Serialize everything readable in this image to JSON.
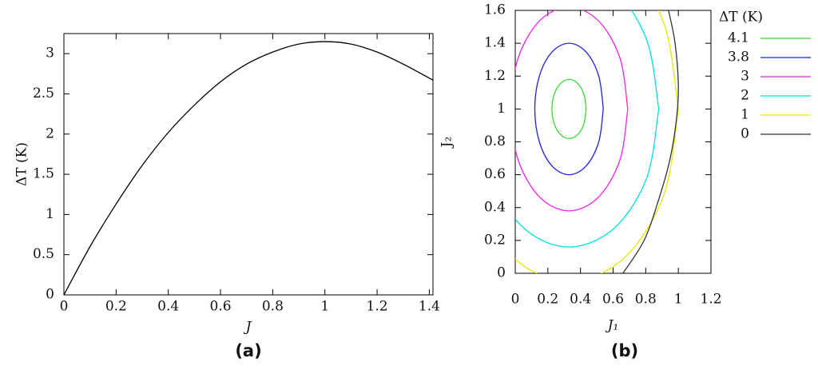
{
  "chart_data": [
    {
      "type": "line",
      "caption": "(a)",
      "xlabel": "J",
      "ylabel": "ΔT (K)",
      "xlim": [
        0,
        1.414
      ],
      "ylim": [
        0,
        3.25
      ],
      "xticks": [
        0,
        0.2,
        0.4,
        0.6,
        0.8,
        1,
        1.2,
        1.4
      ],
      "yticks": [
        0,
        0.5,
        1,
        1.5,
        2,
        2.5,
        3
      ],
      "color": "#000000",
      "x": [
        0,
        0.1,
        0.2,
        0.3,
        0.4,
        0.5,
        0.6,
        0.7,
        0.8,
        0.9,
        1,
        1.1,
        1.2,
        1.3,
        1.414
      ],
      "values": [
        0,
        0.6,
        1.13,
        1.61,
        2.02,
        2.36,
        2.65,
        2.87,
        3.02,
        3.12,
        3.15,
        3.12,
        3.02,
        2.87,
        2.67
      ]
    },
    {
      "type": "contour",
      "caption": "(b)",
      "xlabel": "J₁",
      "ylabel": "J₂",
      "legend_title": "ΔT (K)",
      "xlim": [
        0,
        1.2
      ],
      "ylim": [
        0,
        1.6
      ],
      "xticks": [
        0,
        0.2,
        0.4,
        0.6,
        0.8,
        1,
        1.2
      ],
      "yticks": [
        0,
        0.2,
        0.4,
        0.6,
        0.8,
        1,
        1.2,
        1.4,
        1.6
      ],
      "series": [
        {
          "name": "4.1",
          "color": "#33dd33",
          "x": [
            0.435,
            0.421,
            0.383,
            0.33,
            0.278,
            0.239,
            0.225,
            0.239,
            0.278,
            0.33,
            0.383,
            0.421,
            0.435
          ],
          "values": [
            1,
            1.09,
            1.156,
            1.18,
            1.156,
            1.09,
            1,
            0.91,
            0.844,
            0.82,
            0.844,
            0.91,
            1
          ]
        },
        {
          "name": "3.8",
          "color": "#2222dd",
          "x": [
            0.54,
            0.512,
            0.435,
            0.33,
            0.225,
            0.148,
            0.12,
            0.148,
            0.225,
            0.33,
            0.435,
            0.512,
            0.54
          ],
          "values": [
            1,
            1.2,
            1.346,
            1.4,
            1.346,
            1.2,
            1,
            0.8,
            0.654,
            0.6,
            0.654,
            0.8,
            1
          ]
        },
        {
          "name": "3",
          "color": "#ee22ee",
          "x": [
            0.69,
            0.642,
            0.51,
            0.33,
            0.15,
            0.018,
            -0.03,
            0.018,
            0.15,
            0.33,
            0.51,
            0.642,
            0.69
          ],
          "values": [
            1,
            1.31,
            1.537,
            1.62,
            1.537,
            1.31,
            1,
            0.69,
            0.463,
            0.38,
            0.463,
            0.69,
            1
          ]
        },
        {
          "name": "2",
          "color": "#00e0e0",
          "x": [
            0.88,
            0.806,
            0.605,
            0.33,
            0.055,
            -0.146,
            -0.22,
            -0.146,
            0.055,
            0.33,
            0.605,
            0.806,
            0.88
          ],
          "values": [
            1,
            1.42,
            1.727,
            1.84,
            1.727,
            1.42,
            1,
            0.58,
            0.273,
            0.16,
            0.273,
            0.58,
            1
          ]
        },
        {
          "name": "1",
          "color": "#e8e800",
          "x": [
            1.0,
            0.91,
            0.665,
            0.33,
            -0.005,
            -0.25,
            -0.34,
            -0.25,
            -0.005,
            0.33,
            0.665,
            0.91,
            1.0
          ],
          "values": [
            1,
            1.525,
            1.909,
            2.05,
            1.909,
            1.525,
            1,
            0.475,
            0.091,
            -0.05,
            0.091,
            0.475,
            1
          ]
        },
        {
          "name": "0",
          "color": "#333333",
          "x": [
            0.66,
            0.79,
            0.88,
            0.95,
            0.99,
            1.0,
            0.98,
            0.94
          ],
          "values": [
            0,
            0.2,
            0.45,
            0.7,
            0.95,
            1.15,
            1.4,
            1.6
          ]
        }
      ]
    }
  ]
}
